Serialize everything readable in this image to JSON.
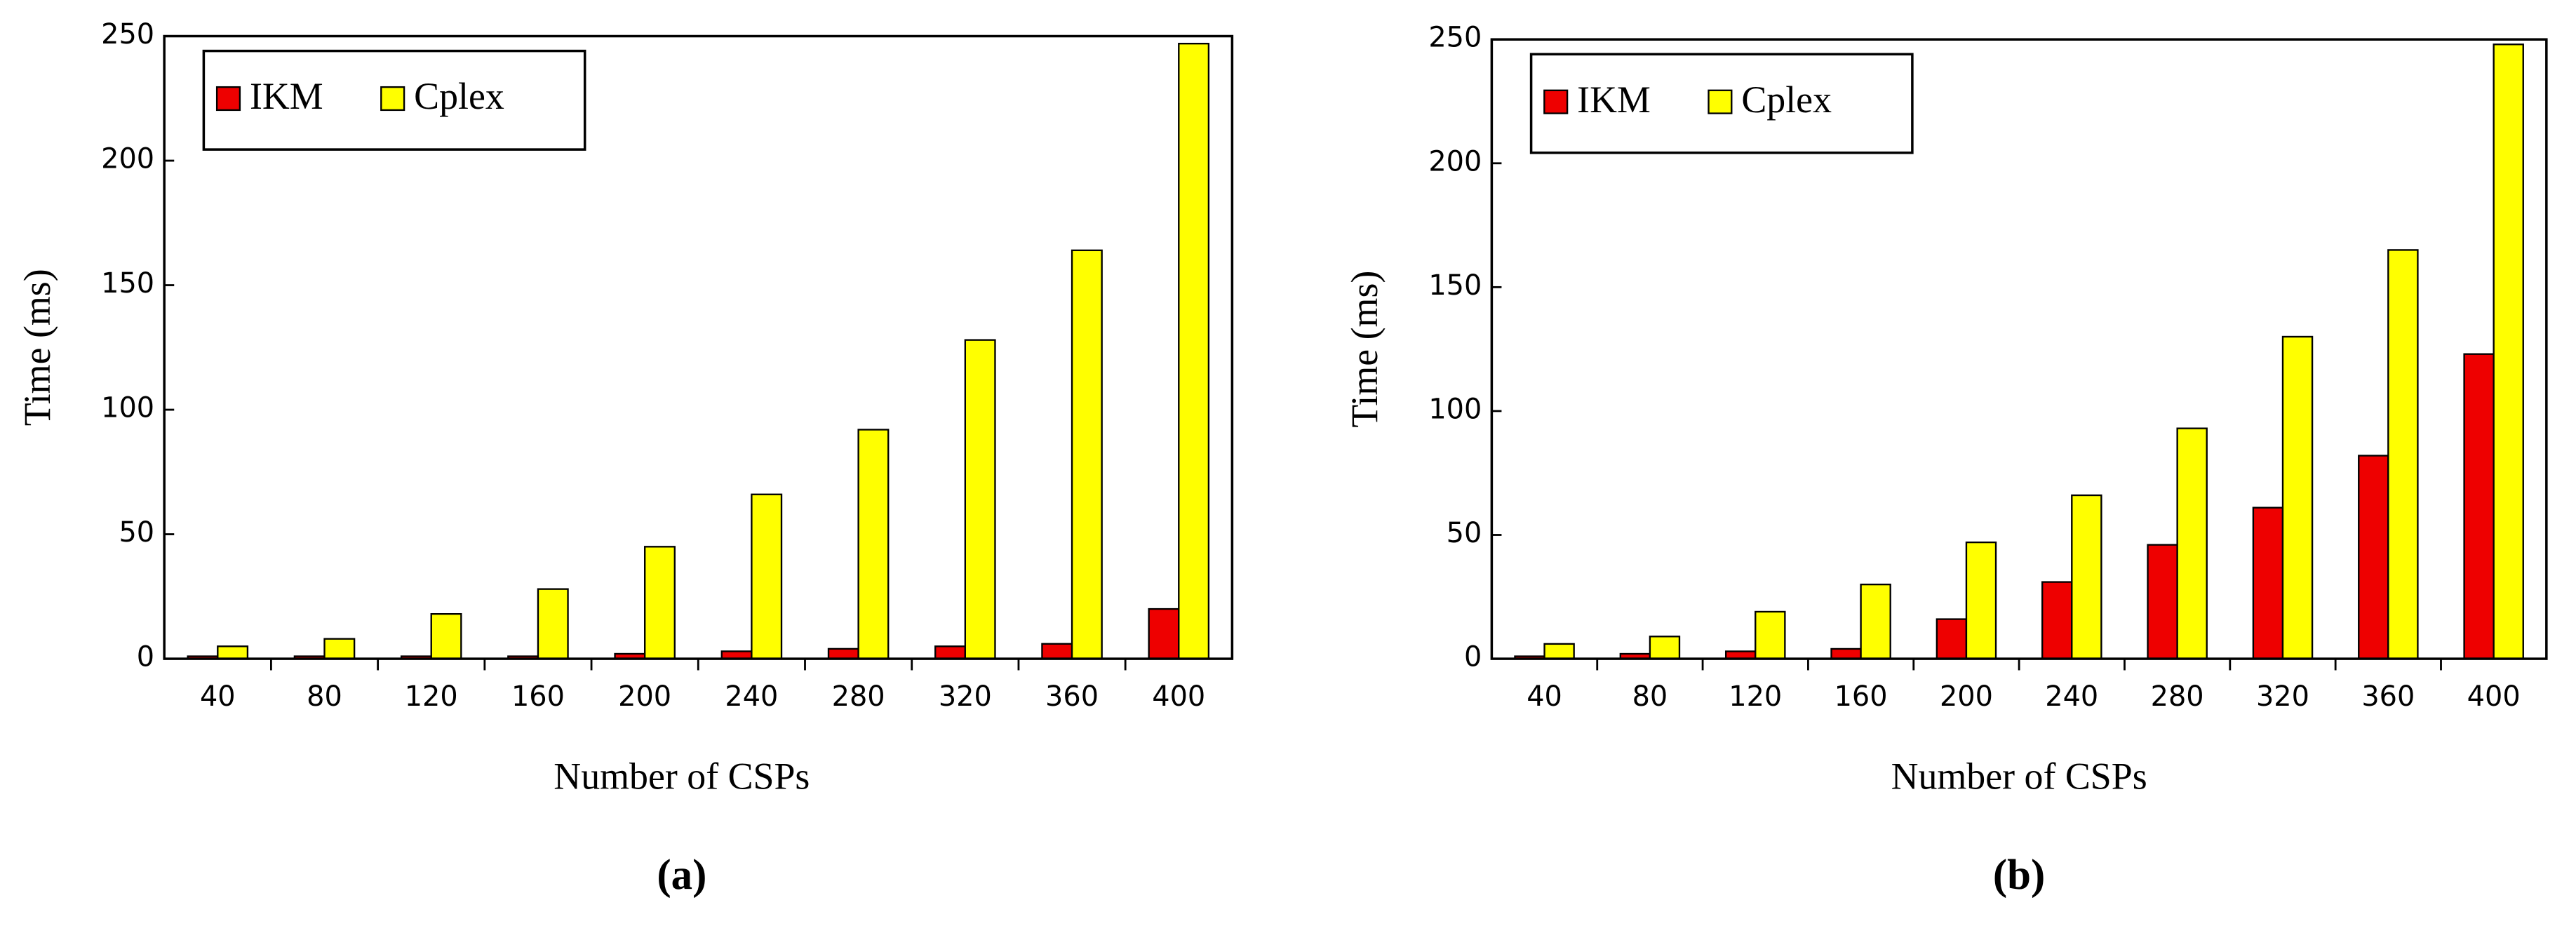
{
  "chart_data": [
    {
      "type": "bar",
      "caption": "(a)",
      "xlabel": "Number of CSPs",
      "ylabel": "Time (ms)",
      "categories": [
        "40",
        "80",
        "120",
        "160",
        "200",
        "240",
        "280",
        "320",
        "360",
        "400"
      ],
      "series": [
        {
          "name": "IKM",
          "color": "#ee0000",
          "values": [
            1,
            1,
            1,
            1,
            2,
            3,
            4,
            5,
            6,
            20
          ]
        },
        {
          "name": "Cplex",
          "color": "#ffff00",
          "values": [
            5,
            8,
            18,
            28,
            45,
            66,
            92,
            128,
            164,
            247
          ]
        }
      ],
      "ylim": [
        0,
        250
      ],
      "yticks": [
        0,
        50,
        100,
        150,
        200,
        250
      ],
      "legend": "upper left"
    },
    {
      "type": "bar",
      "caption": "(b)",
      "xlabel": "Number of CSPs",
      "ylabel": "Time (ms)",
      "categories": [
        "40",
        "80",
        "120",
        "160",
        "200",
        "240",
        "280",
        "320",
        "360",
        "400"
      ],
      "series": [
        {
          "name": "IKM",
          "color": "#ee0000",
          "values": [
            1,
            2,
            3,
            4,
            16,
            31,
            46,
            61,
            82,
            123
          ]
        },
        {
          "name": "Cplex",
          "color": "#ffff00",
          "values": [
            6,
            9,
            19,
            30,
            47,
            66,
            93,
            130,
            165,
            248
          ]
        }
      ],
      "ylim": [
        0,
        250
      ],
      "yticks": [
        0,
        50,
        100,
        150,
        200,
        250
      ],
      "legend": "upper left"
    }
  ]
}
